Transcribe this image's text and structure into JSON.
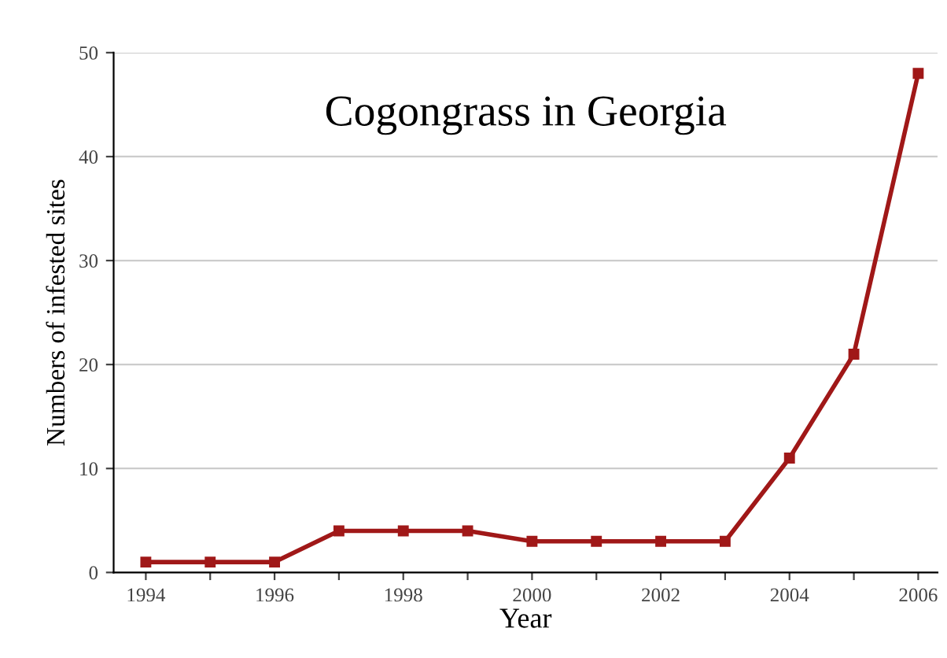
{
  "chart_data": {
    "type": "line",
    "title": "Cogongrass in Georgia",
    "xlabel": "Year",
    "ylabel": "Numbers of infested sites",
    "x": [
      1994,
      1995,
      1996,
      1997,
      1998,
      1999,
      2000,
      2001,
      2002,
      2003,
      2004,
      2005,
      2006
    ],
    "series": [
      {
        "color": "#a01818",
        "values": [
          1,
          1,
          1,
          4,
          4,
          4,
          3,
          3,
          3,
          3,
          11,
          21,
          48
        ]
      }
    ],
    "xlim": [
      1993.5,
      2006.3
    ],
    "ylim": [
      0,
      50
    ],
    "xticks": [
      1994,
      {
        "value": 1995,
        "label": null
      },
      1996,
      {
        "value": 1997,
        "label": null
      },
      1998,
      {
        "value": 1999,
        "label": null
      },
      2000,
      {
        "value": 2001,
        "label": null
      },
      2002,
      {
        "value": 2003,
        "label": null
      },
      2004,
      {
        "value": 2005,
        "label": null
      },
      2006
    ],
    "yticks": [
      0,
      10,
      20,
      30,
      40,
      50
    ],
    "grid": "y",
    "marker": "square",
    "line_style": "solid"
  }
}
